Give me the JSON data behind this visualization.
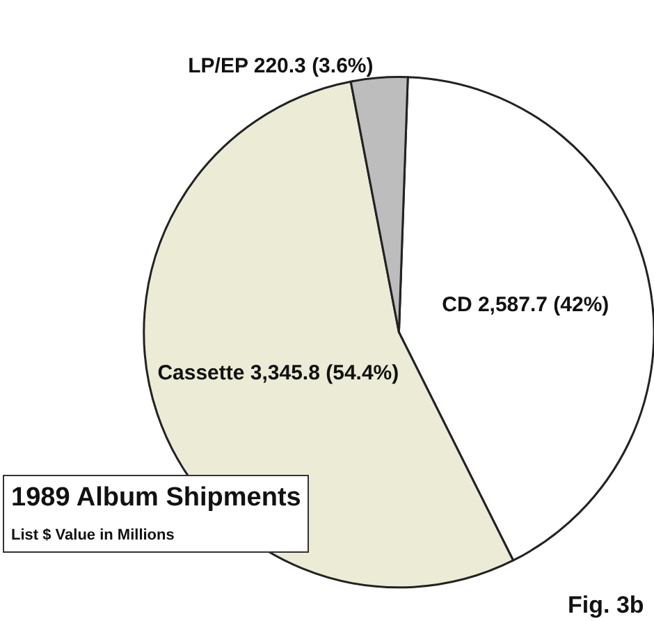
{
  "chart_data": {
    "type": "pie",
    "title": "1989 Album Shipments",
    "subtitle": "List $ Value in Millions",
    "categories": [
      "CD",
      "Cassette",
      "LP/EP"
    ],
    "values": [
      2587.7,
      3345.8,
      220.3
    ],
    "value_labels": [
      "2,587.7 (42%)",
      "3,345.8 (54.4%)",
      "220.3 (3.6%)"
    ],
    "colors": [
      "#ffffff",
      "#ecebd6",
      "#bdbdbd"
    ],
    "legend": false,
    "annotations": [
      "Fig. 3b"
    ]
  }
}
